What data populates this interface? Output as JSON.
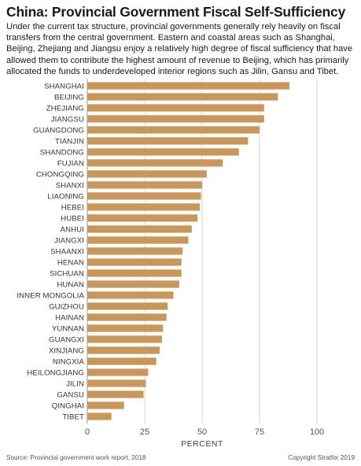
{
  "header": {
    "title": "China: Provincial Government Fiscal Self-Sufficiency",
    "subtitle": "Under the current tax structure, provincial governments generally rely heavily on fiscal transfers from the central government. Eastern and coastal areas such as Shanghai, Beijing, Zhejiang and Jiangsu enjoy a relatively high degree of fiscal sufficiency that have allowed them to contribute the highest amount of revenue to Beijing, which has primarily allocated the funds to underdeveloped interior regions such as Jilin, Gansu and Tibet."
  },
  "chart_data": {
    "type": "bar",
    "orientation": "horizontal",
    "title": "China: Provincial Government Fiscal Self-Sufficiency",
    "xlabel": "PERCENT",
    "ylabel": "",
    "xlim": [
      0,
      100
    ],
    "xticks": [
      0,
      25,
      50,
      75,
      100
    ],
    "grid": true,
    "bar_color": "#c9975a",
    "categories": [
      "SHANGHAI",
      "BEIJING",
      "ZHEJIANG",
      "JIANGSU",
      "GUANGDONG",
      "TIANJIN",
      "SHANDONG",
      "FUJIAN",
      "CHONGQING",
      "SHANXI",
      "LIAONING",
      "HEBEI",
      "HUBEI",
      "ANHUI",
      "JIANGXI",
      "SHAANXI",
      "HENAN",
      "SICHUAN",
      "HUNAN",
      "INNER MONGOLIA",
      "GUIZHOU",
      "HAINAN",
      "YUNNAN",
      "GUANGXI",
      "XINJIANG",
      "NINGXIA",
      "HEILONGJIANG",
      "JILIN",
      "GANSU",
      "QINGHAI",
      "TIBET"
    ],
    "values": [
      88,
      83,
      77,
      77,
      75,
      70,
      66,
      59,
      52,
      50,
      49.5,
      49,
      48,
      45.5,
      44,
      41.5,
      41,
      41,
      40,
      37.5,
      35,
      34.5,
      33,
      32.5,
      31.5,
      30,
      26.5,
      25.5,
      24.5,
      16,
      10.5
    ]
  },
  "footer": {
    "source": "Source: Provincial government work report, 2018",
    "copyright": "Copyright Stratfor 2019"
  }
}
